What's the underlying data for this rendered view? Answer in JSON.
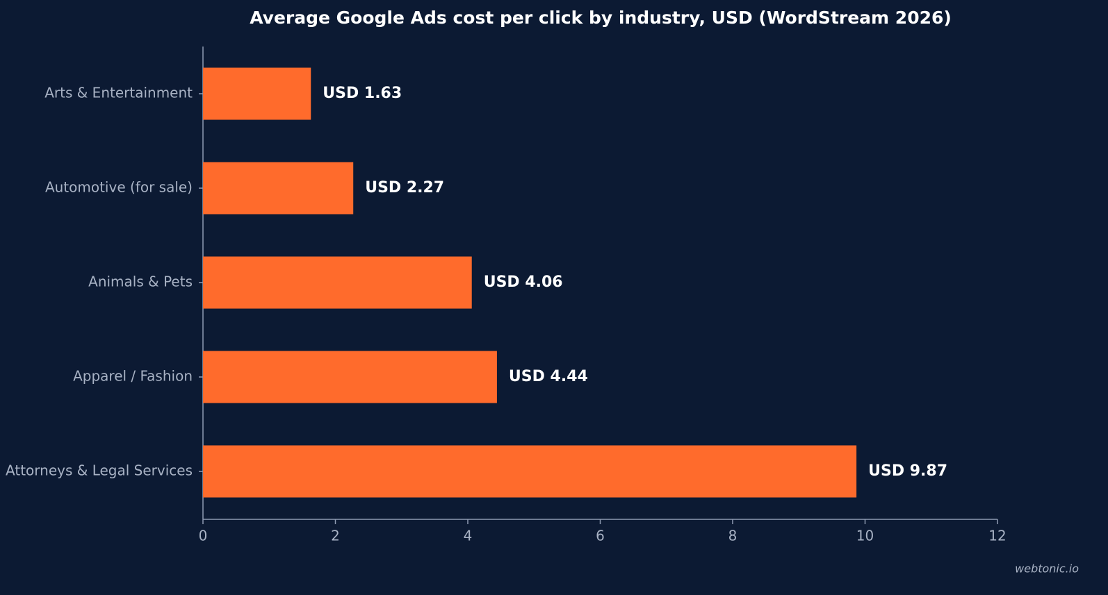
{
  "chart_data": {
    "type": "barh",
    "title": "Average Google Ads cost per click by industry, USD (WordStream 2026)",
    "categories": [
      "Arts & Entertainment",
      "Automotive (for sale)",
      "Animals & Pets",
      "Apparel / Fashion",
      "Attorneys & Legal Services"
    ],
    "values": [
      1.63,
      2.27,
      4.06,
      4.44,
      9.87
    ],
    "value_labels": [
      "USD 1.63",
      "USD 2.27",
      "USD 4.06",
      "USD 4.44",
      "USD 9.87"
    ],
    "color": "#ff6b2c",
    "xlim": [
      0,
      12
    ],
    "xticks": [
      0,
      2,
      4,
      6,
      8,
      10,
      12
    ],
    "grid": false,
    "credit": "webtonic.io"
  }
}
